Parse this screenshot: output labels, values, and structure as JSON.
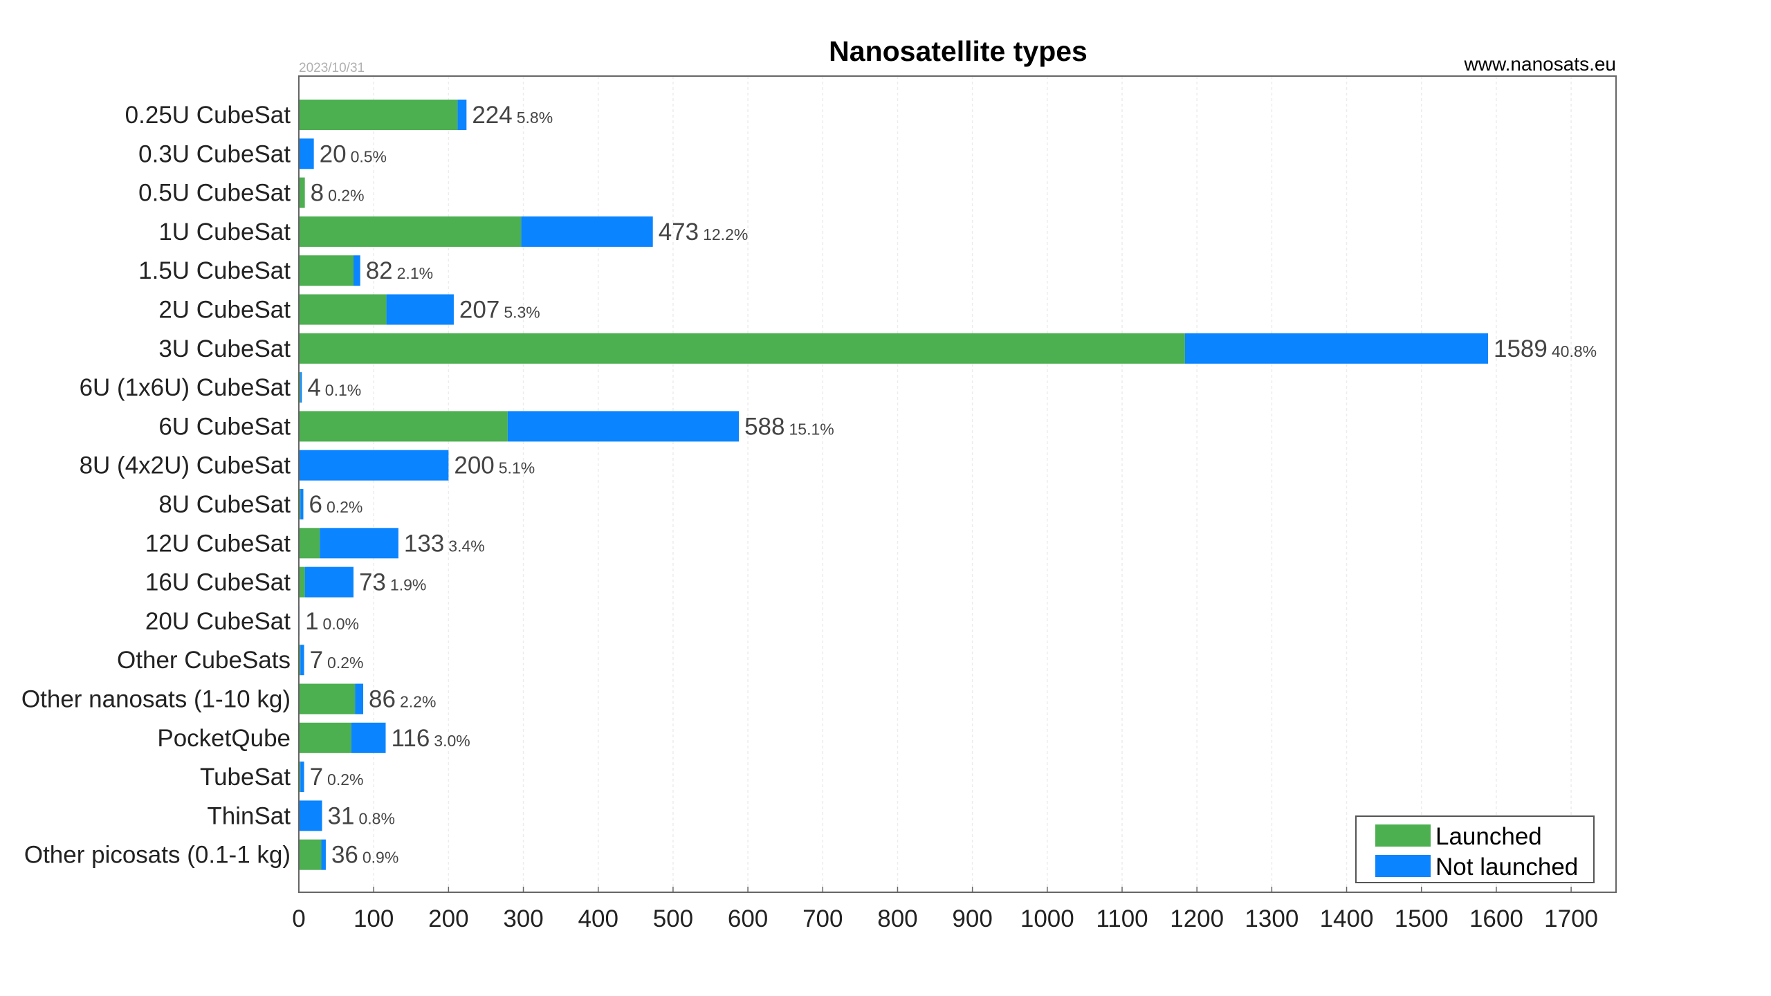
{
  "chart_data": {
    "type": "bar",
    "orientation": "horizontal",
    "stacked": true,
    "title": "Nanosatellite types",
    "date": "2023/10/31",
    "source": "www.nanosats.eu",
    "xlim": [
      0,
      1760
    ],
    "xticks": [
      0,
      100,
      200,
      300,
      400,
      500,
      600,
      700,
      800,
      900,
      1000,
      1100,
      1200,
      1300,
      1400,
      1500,
      1600,
      1700
    ],
    "grid": true,
    "legend_position": "bottom-right",
    "colors": {
      "launched": "#4caf50",
      "not_launched": "#0a84ff"
    },
    "categories": [
      "0.25U CubeSat",
      "0.3U CubeSat",
      "0.5U CubeSat",
      "1U CubeSat",
      "1.5U CubeSat",
      "2U CubeSat",
      "3U CubeSat",
      "6U (1x6U) CubeSat",
      "6U CubeSat",
      "8U (4x2U) CubeSat",
      "8U CubeSat",
      "12U CubeSat",
      "16U CubeSat",
      "20U CubeSat",
      "Other CubeSats",
      "Other nanosats (1-10 kg)",
      "PocketQube",
      "TubeSat",
      "ThinSat",
      "Other picosats (0.1-1 kg)"
    ],
    "series": [
      {
        "name": "Launched",
        "values": [
          212,
          0,
          8,
          297,
          73,
          117,
          1184,
          2,
          279,
          0,
          2,
          28,
          8,
          0,
          2,
          75,
          70,
          2,
          0,
          30
        ]
      },
      {
        "name": "Not launched",
        "values": [
          12,
          20,
          0,
          176,
          9,
          90,
          405,
          2,
          309,
          200,
          4,
          105,
          65,
          1,
          5,
          11,
          46,
          5,
          31,
          6
        ]
      }
    ],
    "totals": [
      "224",
      "20",
      "8",
      "473",
      "82",
      "207",
      "1589",
      "4",
      "588",
      "200",
      "6",
      "133",
      "73",
      "1",
      "7",
      "86",
      "116",
      "7",
      "31",
      "36"
    ],
    "percentages": [
      "5.8%",
      "0.5%",
      "0.2%",
      "12.2%",
      "2.1%",
      "5.3%",
      "40.8%",
      "0.1%",
      "15.1%",
      "5.1%",
      "0.2%",
      "3.4%",
      "1.9%",
      "0.0%",
      "0.2%",
      "2.2%",
      "3.0%",
      "0.2%",
      "0.8%",
      "0.9%"
    ]
  }
}
